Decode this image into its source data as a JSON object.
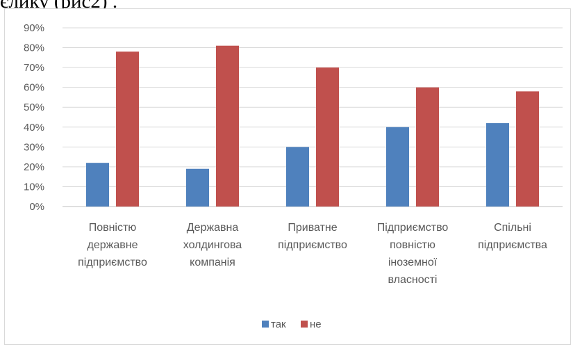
{
  "page": {
    "top_text": "єлику (рис2) ."
  },
  "chart_data": {
    "type": "bar",
    "categories": [
      [
        "Повністю",
        "державне",
        "підприємство"
      ],
      [
        "Державна",
        "холдингова",
        "компанія"
      ],
      [
        "Приватне",
        "підприємство"
      ],
      [
        "Підприємство",
        "повністю",
        "іноземної",
        "власності"
      ],
      [
        "Спільні",
        "підприємства"
      ]
    ],
    "series": [
      {
        "name": "так",
        "color": "#4f81bd",
        "values": [
          22,
          19,
          30,
          40,
          42
        ]
      },
      {
        "name": "не",
        "color": "#c0504d",
        "values": [
          78,
          81,
          70,
          60,
          58
        ]
      }
    ],
    "ylim": [
      0,
      90
    ],
    "yticks": [
      "0%",
      "10%",
      "20%",
      "30%",
      "40%",
      "50%",
      "60%",
      "70%",
      "80%",
      "90%"
    ],
    "grid": true,
    "legend_position": "bottom"
  }
}
